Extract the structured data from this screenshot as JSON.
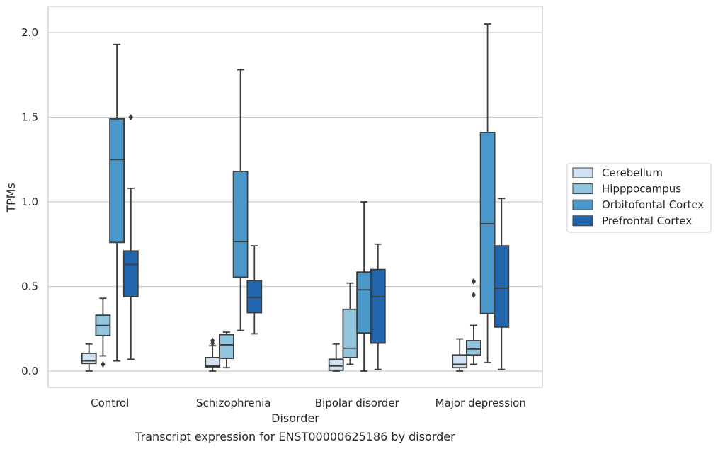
{
  "chart_data": {
    "type": "box",
    "title": "Transcript expression for ENST00000625186 by disorder",
    "xlabel": "Disorder",
    "ylabel": "TPMs",
    "ylim": [
      -0.1,
      2.15
    ],
    "yticks": [
      "0.0",
      "0.5",
      "1.0",
      "1.5",
      "2.0"
    ],
    "grid": "horizontal",
    "legend_position": "right",
    "categories": [
      "Control",
      "Schizophrenia",
      "Bipolar disorder",
      "Major depression"
    ],
    "series": [
      {
        "name": "Cerebellum",
        "color": "#cfe1f2",
        "boxes": [
          {
            "whislo": 0.0,
            "q1": 0.045,
            "med": 0.06,
            "q3": 0.105,
            "whishi": 0.16,
            "fliers": []
          },
          {
            "whislo": 0.0,
            "q1": 0.025,
            "med": 0.03,
            "q3": 0.08,
            "whishi": 0.15,
            "fliers": [
              0.165,
              0.18
            ]
          },
          {
            "whislo": 0.0,
            "q1": 0.005,
            "med": 0.03,
            "q3": 0.07,
            "whishi": 0.16,
            "fliers": []
          },
          {
            "whislo": 0.0,
            "q1": 0.02,
            "med": 0.04,
            "q3": 0.095,
            "whishi": 0.19,
            "fliers": []
          }
        ]
      },
      {
        "name": "Hipppocampus",
        "color": "#93c4de",
        "boxes": [
          {
            "whislo": 0.09,
            "q1": 0.21,
            "med": 0.27,
            "q3": 0.33,
            "whishi": 0.43,
            "fliers": [
              0.04
            ]
          },
          {
            "whislo": 0.02,
            "q1": 0.075,
            "med": 0.155,
            "q3": 0.215,
            "whishi": 0.23,
            "fliers": []
          },
          {
            "whislo": 0.04,
            "q1": 0.08,
            "med": 0.135,
            "q3": 0.365,
            "whishi": 0.52,
            "fliers": []
          },
          {
            "whislo": 0.04,
            "q1": 0.095,
            "med": 0.13,
            "q3": 0.18,
            "whishi": 0.27,
            "fliers": [
              0.45,
              0.53
            ]
          }
        ]
      },
      {
        "name": "Orbitofontal Cortex",
        "color": "#4a98c9",
        "boxes": [
          {
            "whislo": 0.06,
            "q1": 0.76,
            "med": 1.25,
            "q3": 1.49,
            "whishi": 1.93,
            "fliers": []
          },
          {
            "whislo": 0.24,
            "q1": 0.555,
            "med": 0.765,
            "q3": 1.18,
            "whishi": 1.78,
            "fliers": []
          },
          {
            "whislo": 0.0,
            "q1": 0.225,
            "med": 0.48,
            "q3": 0.585,
            "whishi": 1.0,
            "fliers": []
          },
          {
            "whislo": 0.05,
            "q1": 0.34,
            "med": 0.87,
            "q3": 1.41,
            "whishi": 2.05,
            "fliers": []
          }
        ]
      },
      {
        "name": "Prefrontal Cortex",
        "color": "#2166ac",
        "boxes": [
          {
            "whislo": 0.07,
            "q1": 0.44,
            "med": 0.63,
            "q3": 0.71,
            "whishi": 1.08,
            "fliers": [
              1.5
            ]
          },
          {
            "whislo": 0.22,
            "q1": 0.345,
            "med": 0.435,
            "q3": 0.535,
            "whishi": 0.74,
            "fliers": []
          },
          {
            "whislo": 0.01,
            "q1": 0.165,
            "med": 0.44,
            "q3": 0.6,
            "whishi": 0.75,
            "fliers": []
          },
          {
            "whislo": 0.01,
            "q1": 0.26,
            "med": 0.49,
            "q3": 0.74,
            "whishi": 1.02,
            "fliers": []
          }
        ]
      }
    ]
  }
}
